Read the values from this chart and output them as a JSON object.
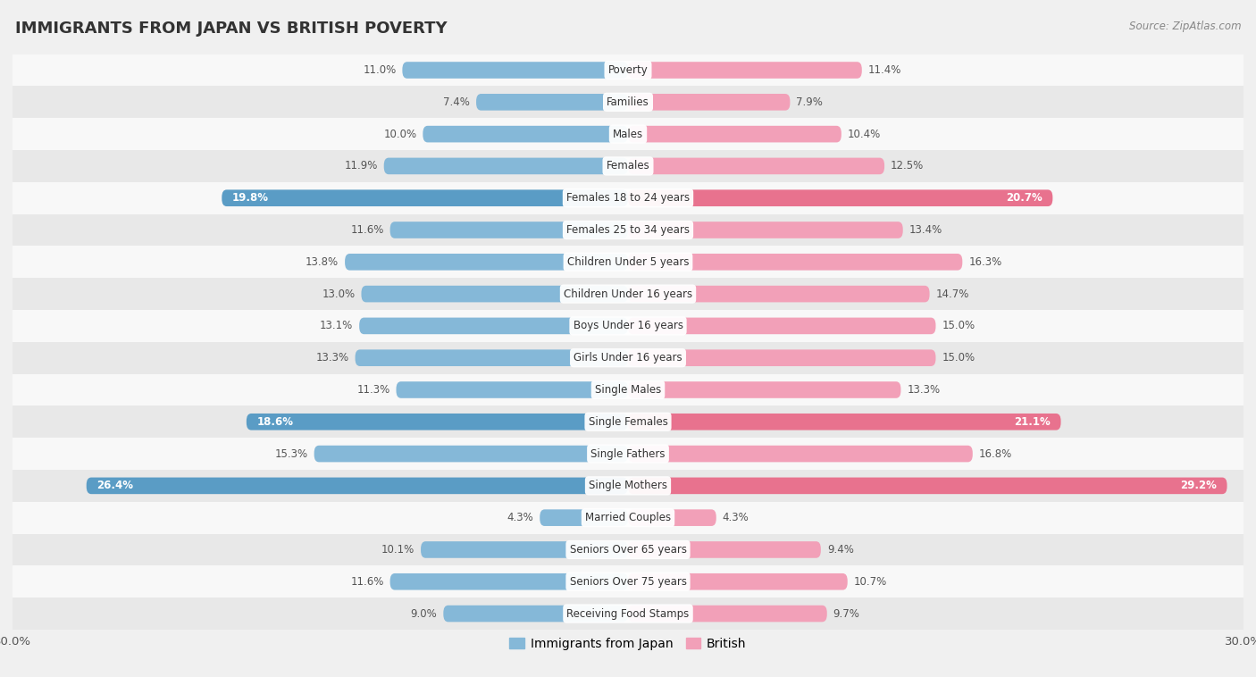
{
  "title": "IMMIGRANTS FROM JAPAN VS BRITISH POVERTY",
  "source": "Source: ZipAtlas.com",
  "categories": [
    "Poverty",
    "Families",
    "Males",
    "Females",
    "Females 18 to 24 years",
    "Females 25 to 34 years",
    "Children Under 5 years",
    "Children Under 16 years",
    "Boys Under 16 years",
    "Girls Under 16 years",
    "Single Males",
    "Single Females",
    "Single Fathers",
    "Single Mothers",
    "Married Couples",
    "Seniors Over 65 years",
    "Seniors Over 75 years",
    "Receiving Food Stamps"
  ],
  "japan_values": [
    11.0,
    7.4,
    10.0,
    11.9,
    19.8,
    11.6,
    13.8,
    13.0,
    13.1,
    13.3,
    11.3,
    18.6,
    15.3,
    26.4,
    4.3,
    10.1,
    11.6,
    9.0
  ],
  "british_values": [
    11.4,
    7.9,
    10.4,
    12.5,
    20.7,
    13.4,
    16.3,
    14.7,
    15.0,
    15.0,
    13.3,
    21.1,
    16.8,
    29.2,
    4.3,
    9.4,
    10.7,
    9.7
  ],
  "japan_color": "#85b8d8",
  "british_color": "#f2a0b8",
  "japan_highlight_color": "#5a9cc5",
  "british_highlight_color": "#e8728e",
  "highlight_rows": [
    4,
    11,
    13
  ],
  "axis_max": 30.0,
  "bar_height": 0.52,
  "background_color": "#f0f0f0",
  "row_bg_even": "#e8e8e8",
  "row_bg_odd": "#f8f8f8",
  "legend_japan": "Immigrants from Japan",
  "legend_british": "British"
}
